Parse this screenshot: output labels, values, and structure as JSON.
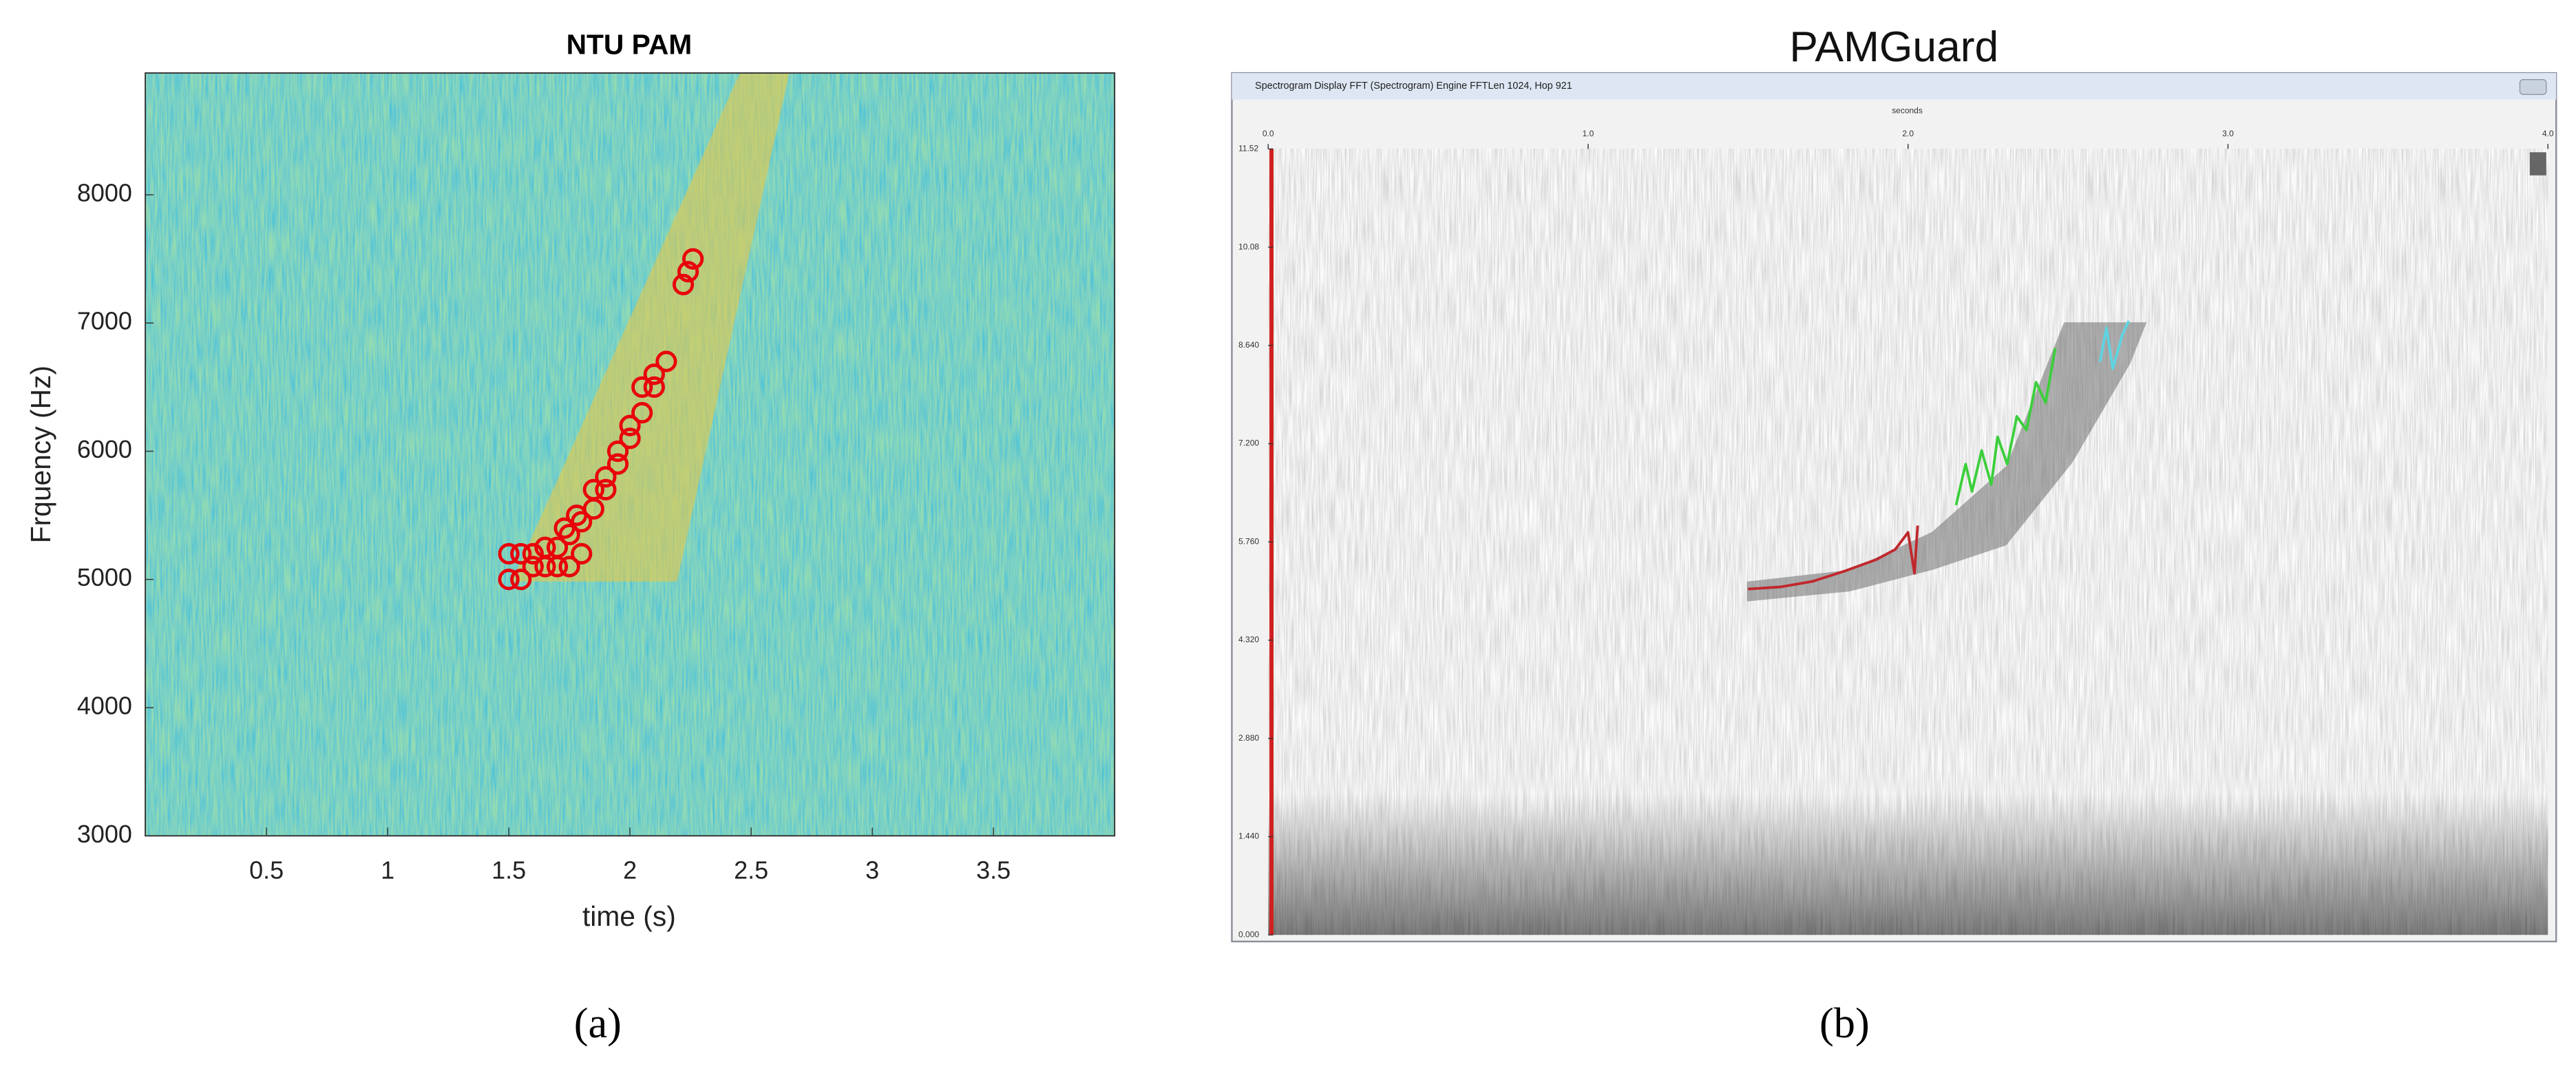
{
  "chart_data": [
    {
      "type": "scatter",
      "title": "NTU PAM",
      "xlabel": "time (s)",
      "ylabel": "Frquency (Hz)",
      "xlim": [
        0,
        4
      ],
      "ylim": [
        3000,
        8950
      ],
      "xticks": [
        0.5,
        1,
        1.5,
        2,
        2.5,
        3,
        3.5
      ],
      "yticks": [
        3000,
        4000,
        5000,
        6000,
        7000,
        8000
      ],
      "grid": false,
      "series": [
        {
          "name": null,
          "color": "#e8000b",
          "x": [
            1.5,
            1.55,
            1.5,
            1.55,
            1.6,
            1.6,
            1.65,
            1.65,
            1.7,
            1.7,
            1.75,
            1.75,
            1.73,
            1.8,
            1.8,
            1.78,
            1.85,
            1.85,
            1.9,
            1.9,
            1.95,
            1.95,
            2.0,
            2.0,
            2.05,
            2.05,
            2.1,
            2.1,
            2.15,
            2.22,
            2.24,
            2.26
          ],
          "values": [
            5000,
            5000,
            5200,
            5200,
            5200,
            5100,
            5100,
            5250,
            5250,
            5100,
            5100,
            5350,
            5400,
            5200,
            5450,
            5500,
            5550,
            5700,
            5700,
            5800,
            5900,
            6000,
            6100,
            6200,
            6300,
            6500,
            6500,
            6600,
            6700,
            7300,
            7400,
            7500
          ]
        }
      ]
    },
    {
      "type": "line",
      "title": "PAMGuard",
      "window_title": "Spectrogram Display FFT (Spectrogram) Engine FFTLen 1024, Hop 921",
      "xlabel": "seconds",
      "xlim": [
        0,
        4
      ],
      "ylim": [
        0,
        11.52
      ],
      "xticks": [
        {
          "value": 0,
          "label": "0.0"
        },
        {
          "value": 1,
          "label": "1.0"
        },
        {
          "value": 2,
          "label": "2.0"
        },
        {
          "value": 3,
          "label": "3.0"
        },
        {
          "value": 4,
          "label": "4.0"
        }
      ],
      "yticks": [
        {
          "value": 0,
          "label": "0.000"
        },
        {
          "value": 1.44,
          "label": "1.440"
        },
        {
          "value": 2.88,
          "label": "2.880"
        },
        {
          "value": 4.32,
          "label": "4.320"
        },
        {
          "value": 5.76,
          "label": "5.760"
        },
        {
          "value": 7.2,
          "label": "7.200"
        },
        {
          "value": 8.64,
          "label": "8.640"
        },
        10.08,
        11.52
      ],
      "series": [
        {
          "name": null,
          "color": "#c0282d",
          "x": [
            1.5,
            1.6,
            1.7,
            1.8,
            1.9,
            1.96,
            2.0,
            2.02,
            2.03
          ],
          "values": [
            5.07,
            5.1,
            5.18,
            5.33,
            5.5,
            5.65,
            5.9,
            5.3,
            6.0
          ]
        },
        {
          "name": null,
          "color": "#3ccf3c",
          "x": [
            2.15,
            2.18,
            2.2,
            2.23,
            2.26,
            2.28,
            2.31,
            2.34,
            2.37,
            2.4,
            2.43,
            2.46
          ],
          "values": [
            6.3,
            6.9,
            6.5,
            7.1,
            6.6,
            7.3,
            6.9,
            7.6,
            7.4,
            8.1,
            7.8,
            8.6
          ]
        },
        {
          "name": null,
          "color": "#5fd3e0",
          "x": [
            2.6,
            2.62,
            2.64,
            2.67,
            2.69
          ],
          "values": [
            8.4,
            8.9,
            8.3,
            8.8,
            9.0
          ]
        }
      ]
    }
  ],
  "captions": [
    "(a)",
    "(b)"
  ]
}
